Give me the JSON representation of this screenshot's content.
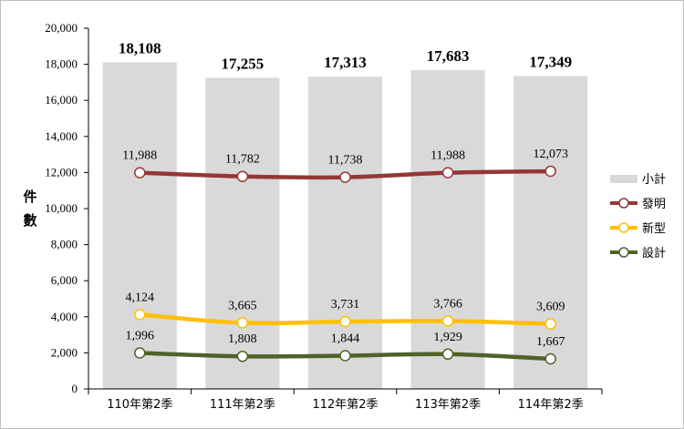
{
  "chart_data": {
    "type": "bar",
    "categories": [
      "110年第2季",
      "111年第2季",
      "112年第2季",
      "113年第2季",
      "114年第2季"
    ],
    "ylabel": "件數",
    "ylim": [
      0,
      20000
    ],
    "yticks": [
      "0",
      "2,000",
      "4,000",
      "6,000",
      "8,000",
      "10,000",
      "12,000",
      "14,000",
      "16,000",
      "18,000",
      "20,000"
    ],
    "grid": false,
    "legend_position": "right",
    "series": [
      {
        "name": "小計",
        "kind": "bar",
        "color": "#d9d9d9",
        "values": [
          18108,
          17255,
          17313,
          17683,
          17349
        ],
        "labels": [
          "18,108",
          "17,255",
          "17,313",
          "17,683",
          "17,349"
        ]
      },
      {
        "name": "發明",
        "kind": "line",
        "color": "#953735",
        "values": [
          11988,
          11782,
          11738,
          11988,
          12073
        ],
        "labels": [
          "11,988",
          "11,782",
          "11,738",
          "11,988",
          "12,073"
        ]
      },
      {
        "name": "新型",
        "kind": "line",
        "color": "#ffc000",
        "values": [
          4124,
          3665,
          3731,
          3766,
          3609
        ],
        "labels": [
          "4,124",
          "3,665",
          "3,731",
          "3,766",
          "3,609"
        ]
      },
      {
        "name": "設計",
        "kind": "line",
        "color": "#4f6228",
        "values": [
          1996,
          1808,
          1844,
          1929,
          1667
        ],
        "labels": [
          "1,996",
          "1,808",
          "1,844",
          "1,929",
          "1,667"
        ]
      }
    ]
  }
}
